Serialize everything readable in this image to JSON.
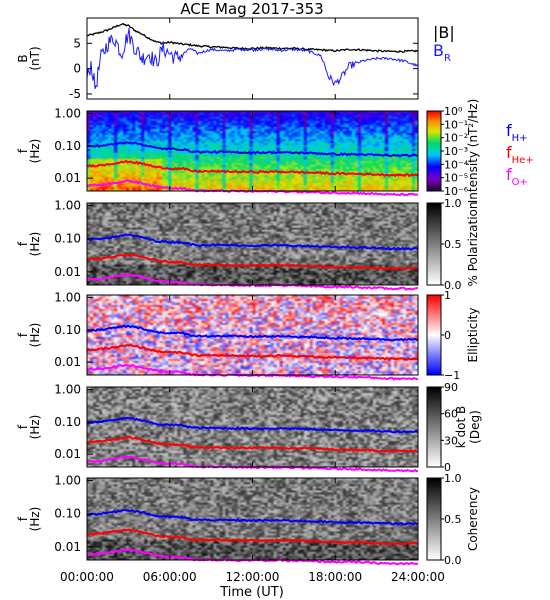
{
  "title": "ACE Mag 2017-353",
  "colors": {
    "axis": "#000000",
    "B_total": "#000000",
    "B_R": "#1a1aff",
    "f_H": "#0000ff",
    "f_He": "#ff0000",
    "f_O": "#ff00ff"
  },
  "x_axis": {
    "label": "Time (UT)",
    "range_hours": [
      0,
      24
    ],
    "ticks": [
      "00:00:00",
      "06:00:00",
      "12:00:00",
      "18:00:00",
      "24:00:00"
    ]
  },
  "chart_data": [
    {
      "type": "line",
      "name": "field",
      "ylabel": "B\n(nT)",
      "ylim": [
        -6,
        10
      ],
      "yticks": [
        "5",
        "0",
        "-5"
      ],
      "legend": [
        {
          "label": "|B|",
          "color": "#000000"
        },
        {
          "label": "B",
          "sub": "R",
          "color": "#1a1aff"
        }
      ],
      "series": [
        {
          "name": "|B|",
          "color": "#000000",
          "x": [
            0,
            0.5,
            1,
            1.5,
            2,
            2.5,
            3,
            3.5,
            4,
            4.5,
            5,
            5.5,
            6,
            6.5,
            7,
            7.5,
            8,
            9,
            10,
            11,
            12,
            13,
            14,
            15,
            16,
            17,
            18,
            19,
            20,
            21,
            22,
            23,
            24
          ],
          "values": [
            6.5,
            6.8,
            7.2,
            7.6,
            8.2,
            8.8,
            8.5,
            7.5,
            6.8,
            6.0,
            5.3,
            5.0,
            5.2,
            5.0,
            4.8,
            4.7,
            4.5,
            4.3,
            4.2,
            4.0,
            4.0,
            4.1,
            4.0,
            4.0,
            3.8,
            3.7,
            3.5,
            3.8,
            3.7,
            3.5,
            3.4,
            3.4,
            3.5
          ]
        },
        {
          "name": "B_R",
          "color": "#1a1aff",
          "x": [
            0,
            0.3,
            0.6,
            1,
            1.5,
            2,
            2.5,
            3,
            3.5,
            4,
            4.5,
            5,
            5.5,
            6,
            6.5,
            7,
            7.5,
            8,
            9,
            10,
            11,
            12,
            13,
            14,
            15,
            16,
            17,
            17.5,
            18,
            18.5,
            19,
            20,
            21,
            22,
            23,
            23.5,
            24
          ],
          "values": [
            -2,
            1,
            -4,
            2,
            5,
            6,
            3,
            7,
            4,
            2,
            3,
            1,
            4,
            3,
            2,
            3,
            4,
            3,
            3.8,
            3.5,
            3.8,
            3.7,
            3.9,
            3.6,
            3.8,
            3.5,
            2.5,
            -1.5,
            -3.0,
            -1.5,
            0.5,
            1.5,
            2.0,
            2.0,
            1.5,
            1.0,
            0.5
          ]
        }
      ]
    },
    {
      "type": "heatmap",
      "name": "intensity",
      "ylabel": "f\n(Hz)",
      "yscale": "log",
      "ylim": [
        0.004,
        1.2
      ],
      "yticks": [
        "1.00",
        "0.10",
        "0.01"
      ],
      "colorbar": {
        "label": "Intensity (nT²/Hz)",
        "scale": "log",
        "ticks": [
          "10⁰",
          "10⁻¹",
          "10⁻²",
          "10⁻³",
          "10⁻⁴",
          "10⁻⁵",
          "10⁻⁶"
        ]
      },
      "legend": [
        {
          "label": "f",
          "sub": "H+",
          "color": "#0000ff"
        },
        {
          "label": "f",
          "sub": "He+",
          "color": "#ff0000"
        },
        {
          "label": "f",
          "sub": "O+",
          "color": "#ff00ff"
        }
      ]
    },
    {
      "type": "heatmap",
      "name": "polarization",
      "ylabel": "f\n(Hz)",
      "yscale": "log",
      "ylim": [
        0.004,
        1.2
      ],
      "yticks": [
        "1.00",
        "0.10",
        "0.01"
      ],
      "colorbar": {
        "label": "% Polarization",
        "ticks": [
          "1.0",
          "0.5",
          "0.0"
        ]
      }
    },
    {
      "type": "heatmap",
      "name": "ellipticity",
      "ylabel": "f\n(Hz)",
      "yscale": "log",
      "ylim": [
        0.004,
        1.2
      ],
      "yticks": [
        "1.00",
        "0.10",
        "0.01"
      ],
      "colorbar": {
        "label": "Ellipticity",
        "ticks": [
          "1",
          "0",
          "−1"
        ]
      }
    },
    {
      "type": "heatmap",
      "name": "kdotb",
      "ylabel": "f\n(Hz)",
      "yscale": "log",
      "ylim": [
        0.004,
        1.2
      ],
      "yticks": [
        "1.00",
        "0.10",
        "0.01"
      ],
      "colorbar": {
        "label": "k dot B",
        "label2": "(Deg)",
        "ticks": [
          "90",
          "60",
          "30",
          "0"
        ]
      }
    },
    {
      "type": "heatmap",
      "name": "coherency",
      "ylabel": "f\n(Hz)",
      "yscale": "log",
      "ylim": [
        0.004,
        1.2
      ],
      "yticks": [
        "1.00",
        "0.10",
        "0.01"
      ],
      "colorbar": {
        "label": "Coherency",
        "ticks": [
          "1.0",
          "0.5",
          "0.0"
        ]
      }
    }
  ],
  "gyrofrequency_lines": {
    "x": [
      0,
      1,
      2,
      2.5,
      3,
      4,
      5,
      6,
      7,
      7.5,
      8,
      10,
      12,
      14,
      16,
      17,
      18,
      19,
      20,
      22,
      24
    ],
    "f_H": [
      0.095,
      0.1,
      0.115,
      0.125,
      0.13,
      0.11,
      0.085,
      0.08,
      0.078,
      0.068,
      0.065,
      0.064,
      0.062,
      0.063,
      0.06,
      0.058,
      0.055,
      0.055,
      0.054,
      0.05,
      0.05
    ],
    "f_He": [
      0.024,
      0.025,
      0.029,
      0.031,
      0.033,
      0.028,
      0.022,
      0.02,
      0.0195,
      0.017,
      0.0163,
      0.016,
      0.0155,
      0.0158,
      0.015,
      0.0145,
      0.0138,
      0.0138,
      0.0135,
      0.0125,
      0.0125
    ],
    "f_O": [
      0.006,
      0.0062,
      0.0072,
      0.0078,
      0.0082,
      0.007,
      0.0055,
      0.005,
      0.0049,
      0.0042,
      0.0041,
      0.004,
      0.0039,
      0.0039,
      0.0037,
      0.0036,
      0.0035,
      0.0035,
      0.0034,
      0.0031,
      0.0031
    ]
  }
}
